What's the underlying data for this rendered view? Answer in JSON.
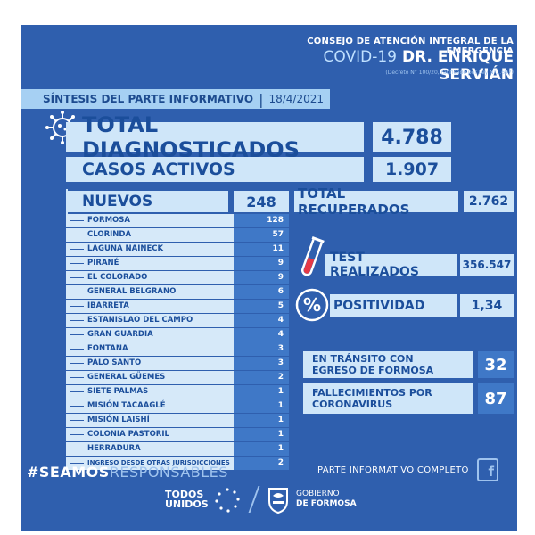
{
  "header": {
    "line1": "CONSEJO DE ATENCIÓN INTEGRAL DE LA EMERGENCIA",
    "covid": "COVID-19",
    "name": "DR. ENRIQUE SERVIÁN",
    "decree": "(Decreto N° 100/20, ratificado por Ley Nº1.697)"
  },
  "sintesis": {
    "title": "SÍNTESIS DEL PARTE INFORMATIVO",
    "date": "18/4/2021"
  },
  "totals": {
    "diag_label": "TOTAL DIAGNOSTICADOS",
    "diag_value": "4.788",
    "activos_label": "CASOS ACTIVOS",
    "activos_value": "1.907",
    "recuperados_label": "TOTAL RECUPERADOS",
    "recuperados_value": "2.762",
    "test_label": "TEST REALIZADOS",
    "test_value": "356.547",
    "positividad_label": "POSITIVIDAD",
    "positividad_value": "1,34",
    "transito_label_1": "EN TRÁNSITO CON",
    "transito_label_2": "EGRESO DE FORMOSA",
    "transito_value": "32",
    "fallec_label_1": "FALLECIMIENTOS POR",
    "fallec_label_2": "CORONAVIRUS",
    "fallec_value": "87"
  },
  "nuevos": {
    "label": "NUEVOS",
    "value": "248",
    "rows": [
      {
        "name": "FORMOSA",
        "value": "128"
      },
      {
        "name": "CLORINDA",
        "value": "57"
      },
      {
        "name": "LAGUNA NAINECK",
        "value": "11"
      },
      {
        "name": "PIRANÉ",
        "value": "9"
      },
      {
        "name": "EL COLORADO",
        "value": "9"
      },
      {
        "name": "GENERAL BELGRANO",
        "value": "6"
      },
      {
        "name": "IBARRETA",
        "value": "5"
      },
      {
        "name": "ESTANISLAO DEL CAMPO",
        "value": "4"
      },
      {
        "name": "GRAN GUARDIA",
        "value": "4"
      },
      {
        "name": "FONTANA",
        "value": "3"
      },
      {
        "name": "PALO SANTO",
        "value": "3"
      },
      {
        "name": "GENERAL GÜEMES",
        "value": "2"
      },
      {
        "name": "SIETE PALMAS",
        "value": "1"
      },
      {
        "name": "MISIÓN TACAAGLÉ",
        "value": "1"
      },
      {
        "name": "MISIÓN LAISHÍ",
        "value": "1"
      },
      {
        "name": "COLONIA PASTORIL",
        "value": "1"
      },
      {
        "name": "HERRADURA",
        "value": "1"
      },
      {
        "name": "INGRESO DESDE OTRAS JURISDICCIONES",
        "value": "2"
      }
    ]
  },
  "footer": {
    "hash": "#SEAMOS",
    "hash_b": "RESPONSABLES",
    "parte": "PARTE INFORMATIVO COMPLETO",
    "fb_icon": "f",
    "todos_1": "TODOS",
    "todos_2": "UNIDOS",
    "gob_1": "GOBIERNO",
    "gob_2": "DE FORMOSA"
  },
  "colors": {
    "background": "#2f5fae",
    "panel": "#cfe6f9",
    "accent": "#3f78c7",
    "text": "#1b4e9b"
  }
}
